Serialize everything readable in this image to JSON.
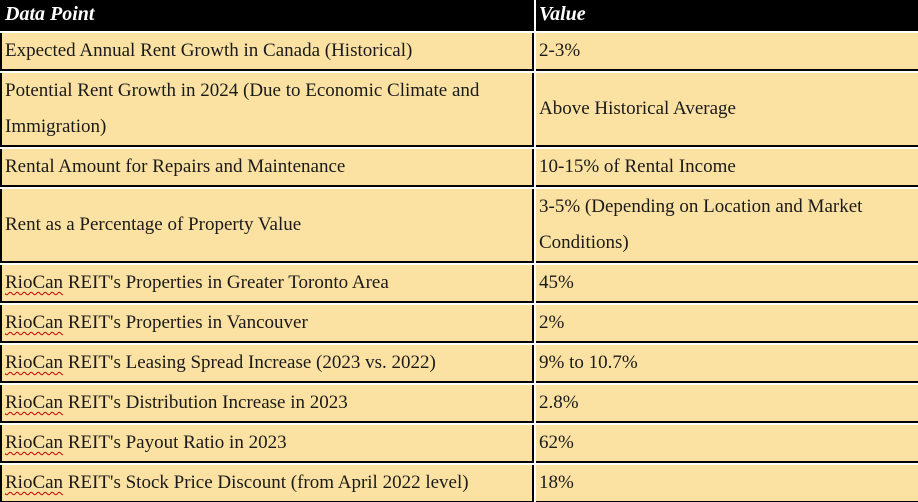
{
  "table": {
    "columns": [
      {
        "label": "Data Point"
      },
      {
        "label": "Value"
      }
    ],
    "rows": [
      {
        "data_point": "Expected Annual Rent Growth in Canada (Historical)",
        "value": "2-3%"
      },
      {
        "data_point": "Potential Rent Growth in 2024 (Due to Economic Climate and Immigration)",
        "value": "Above Historical Average"
      },
      {
        "data_point": "Rental Amount for Repairs and Maintenance",
        "value": "10-15% of Rental Income"
      },
      {
        "data_point": "Rent as a Percentage of Property Value",
        "value": "3-5% (Depending on Location and Market Conditions)"
      },
      {
        "data_point": "RioCan REIT's Properties in Greater Toronto Area",
        "value": "45%",
        "spellcheck_word": "RioCan"
      },
      {
        "data_point": "RioCan REIT's Properties in Vancouver",
        "value": "2%",
        "spellcheck_word": "RioCan"
      },
      {
        "data_point": "RioCan REIT's Leasing Spread Increase (2023 vs. 2022)",
        "value": "9% to 10.7%",
        "spellcheck_word": "RioCan"
      },
      {
        "data_point": "RioCan REIT's Distribution Increase in 2023",
        "value": "2.8%",
        "spellcheck_word": "RioCan"
      },
      {
        "data_point": "RioCan REIT's Payout Ratio in 2023",
        "value": "62%",
        "spellcheck_word": "RioCan"
      },
      {
        "data_point": "RioCan REIT's Stock Price Discount (from April 2022 level)",
        "value": "18%",
        "spellcheck_word": "RioCan"
      }
    ]
  },
  "colors": {
    "header_bg": "#000000",
    "header_text": "#ffffff",
    "row_bg": "#fbe2a2",
    "border": "#000000",
    "spellcheck_red": "#c00000"
  }
}
